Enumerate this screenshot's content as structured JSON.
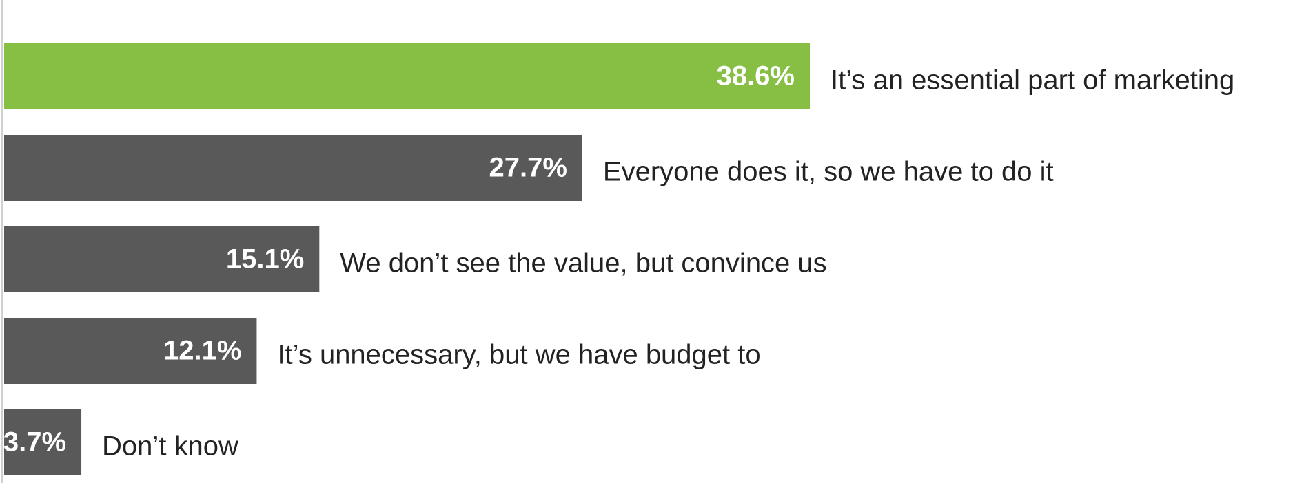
{
  "chart_data": {
    "type": "hbar",
    "categories": [
      "It’s an essential part of marketing",
      "Everyone does it, so we have to do it",
      "We don’t see the value, but convince us",
      "It’s unnecessary, but we have budget to",
      "Don’t know"
    ],
    "values": [
      38.6,
      27.7,
      15.1,
      12.1,
      3.7
    ],
    "value_labels": [
      "38.6%",
      "27.7%",
      "15.1%",
      "12.1%",
      "3.7%"
    ],
    "colors": [
      "#86bf44",
      "#595959",
      "#595959",
      "#595959",
      "#595959"
    ]
  }
}
